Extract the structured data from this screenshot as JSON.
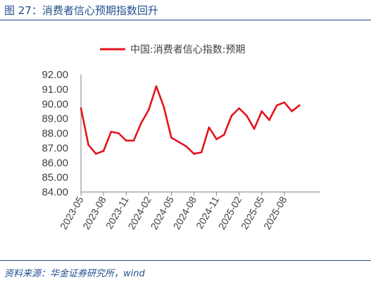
{
  "figure": {
    "title": "图 27：消费者信心预期指数回升",
    "source": "资料来源：华金证券研究所，wind"
  },
  "chart_data": {
    "type": "line",
    "x": [
      "2023-05",
      "2023-06",
      "2023-07",
      "2023-08",
      "2023-09",
      "2023-10",
      "2023-11",
      "2023-12",
      "2024-01",
      "2024-02",
      "2024-03",
      "2024-04",
      "2024-05",
      "2024-06",
      "2024-07",
      "2024-08",
      "2024-09",
      "2024-10",
      "2024-11",
      "2024-12",
      "2025-01",
      "2025-02",
      "2025-03",
      "2025-04",
      "2025-05",
      "2025-06",
      "2025-07",
      "2025-08",
      "2025-09",
      "2025-10"
    ],
    "x_tick_labels": [
      "2023-05",
      "2023-08",
      "2023-11",
      "2024-02",
      "2024-05",
      "2024-08",
      "2024-11",
      "2025-02",
      "2025-05",
      "2025-08"
    ],
    "series": [
      {
        "name": "中国:消费者信心指数:预期",
        "color": "#e3141c",
        "values": [
          89.7,
          87.2,
          86.6,
          86.8,
          88.1,
          88.0,
          87.5,
          87.5,
          88.7,
          89.6,
          91.2,
          89.8,
          87.7,
          87.4,
          87.1,
          86.6,
          86.7,
          88.4,
          87.6,
          87.9,
          89.2,
          89.7,
          89.2,
          88.3,
          89.5,
          88.9,
          89.9,
          90.1,
          89.5,
          89.9
        ]
      }
    ],
    "y_ticks": [
      "84.00",
      "85.00",
      "86.00",
      "87.00",
      "88.00",
      "89.00",
      "90.00",
      "91.00",
      "92.00"
    ],
    "ylim": [
      84,
      92
    ],
    "grid": false,
    "legend_position": "top-center"
  }
}
